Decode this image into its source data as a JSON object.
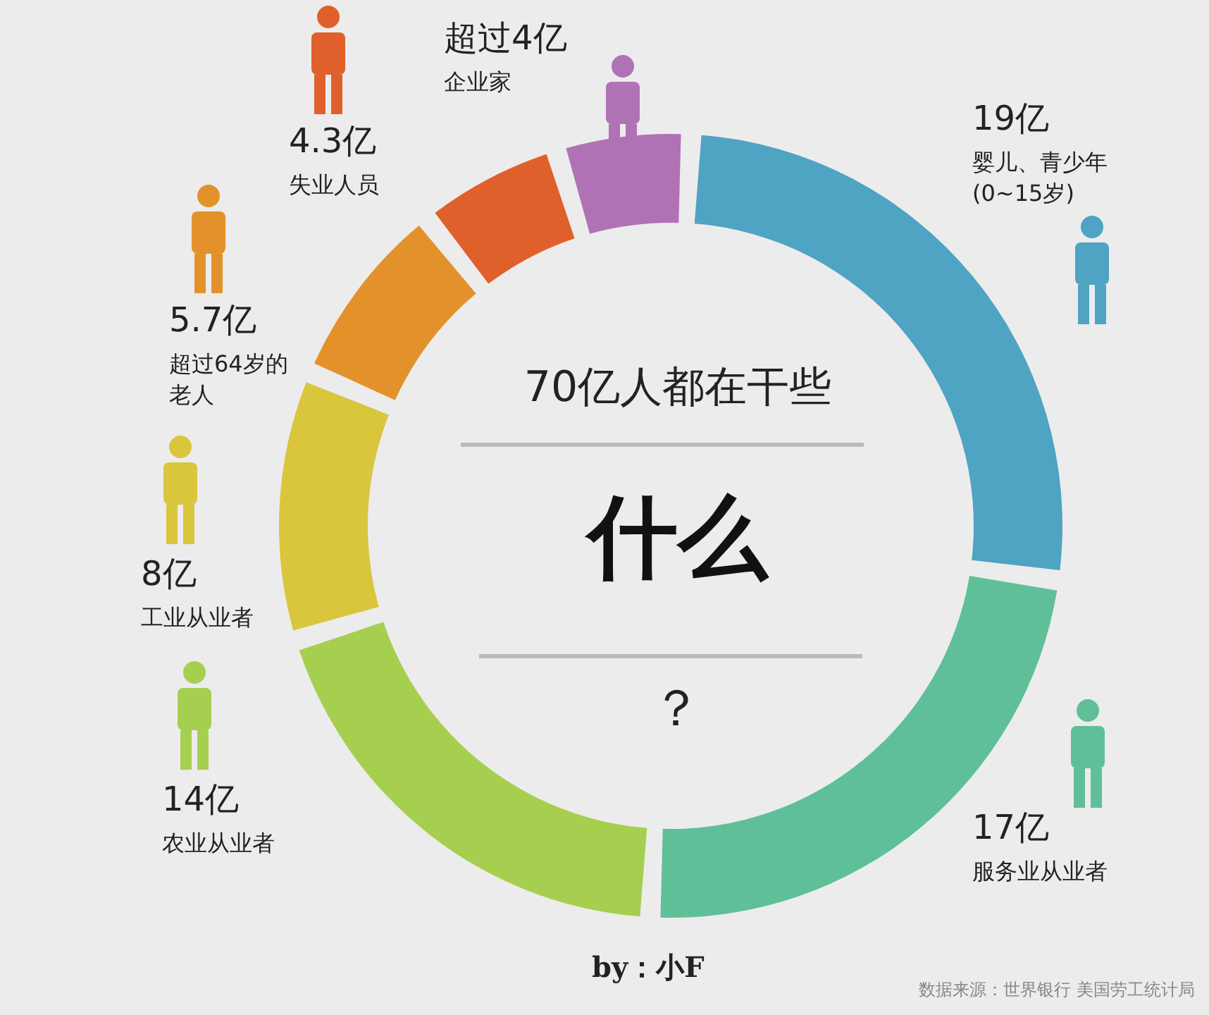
{
  "chart_data": {
    "type": "donut",
    "title": "70亿人都在干些",
    "subtitle": "什么",
    "categories": [
      "婴儿、青少年(0~15岁)",
      "服务业从业者",
      "农业从业者",
      "工业从业者",
      "超过64岁的老人",
      "失业人员",
      "企业家"
    ],
    "values": [
      19,
      17,
      14,
      8,
      5.7,
      4.3,
      4
    ],
    "value_labels": [
      "19亿",
      "17亿",
      "14亿",
      "8亿",
      "5.7亿",
      "4.3亿",
      "超过4亿"
    ],
    "colors": [
      "#4fa3c3",
      "#5fbf99",
      "#a6cf4f",
      "#d9c63d",
      "#e3922b",
      "#e0602b",
      "#af72b4"
    ],
    "annotations": [
      "？",
      "by：小F",
      "数据来源：世界银行 美国劳工统计局"
    ]
  }
}
